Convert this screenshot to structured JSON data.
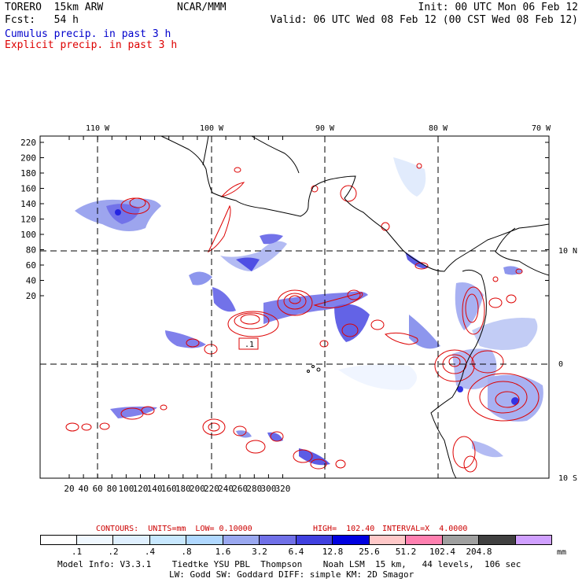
{
  "header": {
    "model": "TORERO  15km ARW",
    "center": "NCAR/MMM",
    "init": "Init: 00 UTC Mon 06 Feb 12",
    "fcst": "Fcst:   54 h",
    "valid": "Valid: 06 UTC Wed 08 Feb 12 (00 CST Wed 08 Feb 12)",
    "line_cumulus": "Cumulus precip. in past 3 h",
    "line_explicit": "Explicit precip. in past 3 h"
  },
  "colors": {
    "cumulus": "#0000cc",
    "explicit": "#dd0000",
    "contours_text": "#cc0000"
  },
  "map": {
    "lon_labels": [
      "110 W",
      "100 W",
      "90 W",
      "80 W",
      "70 W"
    ],
    "lat_labels": [
      "10 N",
      "0",
      "10 S"
    ],
    "y_ticks": [
      "220",
      "200",
      "180",
      "160",
      "140",
      "120",
      "100",
      "80",
      "60",
      "40",
      "20"
    ],
    "x_ticks": [
      "20",
      "40",
      "60",
      "80",
      "100",
      "120",
      "140",
      "160",
      "180",
      "200",
      "220",
      "240",
      "260",
      "280",
      "300",
      "320"
    ],
    "contour_label": ".1"
  },
  "contours_info": {
    "units": "CONTOURS:  UNITS=mm  LOW= 0.10000",
    "high": "HIGH=  102.40",
    "interval": "INTERVAL=X  4.0000"
  },
  "colorbar": {
    "ticks": [
      ".1",
      ".2",
      ".4",
      ".8",
      "1.6",
      "3.2",
      "6.4",
      "12.8",
      "25.6",
      "51.2",
      "102.4",
      "204.8"
    ],
    "unit": "mm",
    "colors": [
      "#ffffff",
      "#f0f8ff",
      "#e0f0ff",
      "#c8e8ff",
      "#b0d8ff",
      "#9aa8f0",
      "#7070e8",
      "#4040e0",
      "#0000e0",
      "#ffc8c8",
      "#ff80b0",
      "#a0a0a0",
      "#404040",
      "#d0a0ff"
    ]
  },
  "footer": {
    "line1": "Model Info: V3.3.1    Tiedtke YSU PBL  Thompson    Noah LSM  15 km,   44 levels,  106 sec",
    "line2": "LW: Godd SW: Goddard DIFF: simple KM: 2D Smagor"
  }
}
